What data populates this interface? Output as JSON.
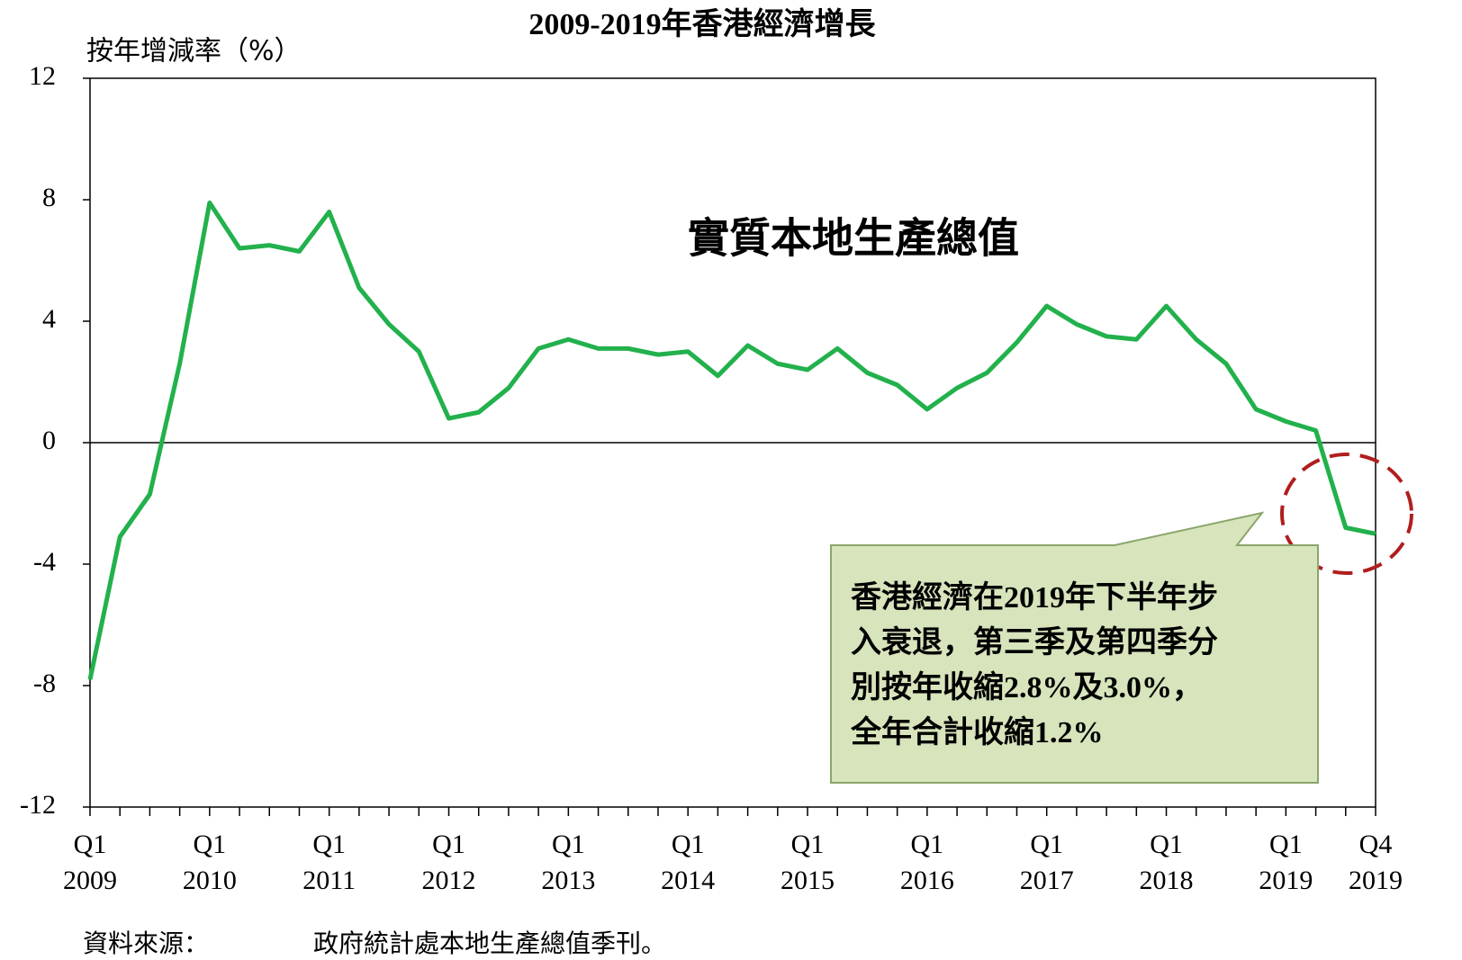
{
  "chart_data": {
    "type": "line",
    "title": "2009-2019年香港經濟增長",
    "y_axis_label": "按年增減率（%）",
    "categories": [
      "Q1 2009",
      null,
      null,
      null,
      "Q1 2010",
      null,
      null,
      null,
      "Q1 2011",
      null,
      null,
      null,
      "Q1 2012",
      null,
      null,
      null,
      "Q1 2013",
      null,
      null,
      null,
      "Q1 2014",
      null,
      null,
      null,
      "Q1 2015",
      null,
      null,
      null,
      "Q1 2016",
      null,
      null,
      null,
      "Q1 2017",
      null,
      null,
      null,
      "Q1 2018",
      null,
      null,
      null,
      "Q1 2019",
      null,
      null,
      "Q4 2019"
    ],
    "series": [
      {
        "name": "實質本地生產總值",
        "color": "#22b14c",
        "values": [
          -7.8,
          -3.1,
          -1.7,
          2.6,
          7.9,
          6.4,
          6.5,
          6.3,
          7.6,
          5.1,
          3.9,
          3.0,
          0.8,
          1.0,
          1.8,
          3.1,
          3.4,
          3.1,
          3.1,
          2.9,
          3.0,
          2.2,
          3.2,
          2.6,
          2.4,
          3.1,
          2.3,
          1.9,
          1.1,
          1.8,
          2.3,
          3.3,
          4.5,
          3.9,
          3.5,
          3.4,
          4.5,
          3.4,
          2.6,
          1.1,
          0.7,
          0.4,
          -2.8,
          -3.0
        ]
      }
    ],
    "ylim": [
      -12,
      12
    ],
    "yticks": [
      -12,
      -8,
      -4,
      0,
      4,
      8,
      12
    ],
    "annotation_lines": [
      "香港經濟在2019年下半年步",
      "入衰退，第三季及第四季分",
      "別按年收縮2.8%及3.0%，",
      "全年合計收縮1.2%"
    ],
    "source_label": "資料來源：",
    "source_text": "政府統計處本地生產總值季刊。"
  }
}
